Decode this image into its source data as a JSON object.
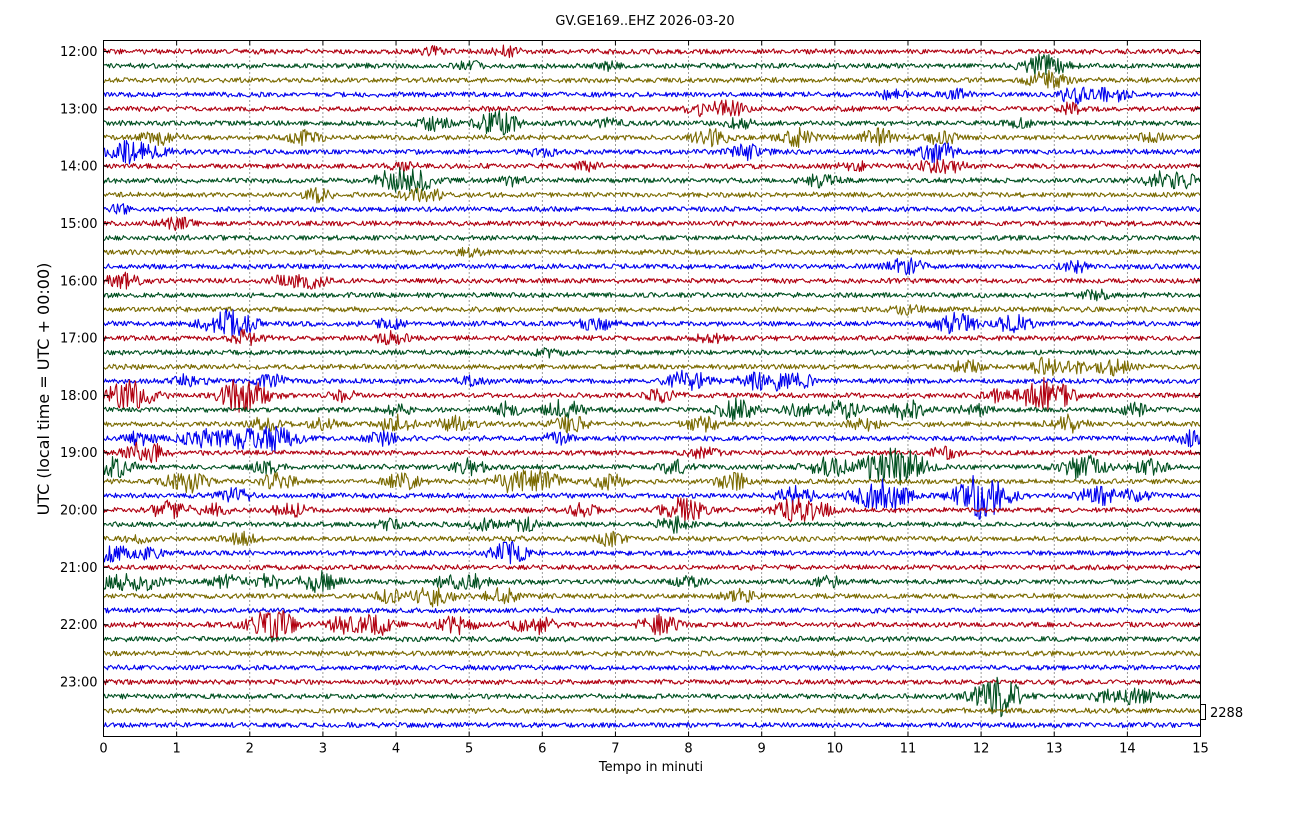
{
  "chart_data": {
    "type": "line",
    "title": "GV.GE169..EHZ 2026-03-20",
    "xlabel": "Tempo in minuti",
    "ylabel": "UTC (local time = UTC + 00:00)",
    "xlim": [
      0,
      15
    ],
    "x_ticks": [
      "0",
      "1",
      "2",
      "3",
      "4",
      "5",
      "6",
      "7",
      "8",
      "9",
      "10",
      "11",
      "12",
      "13",
      "14",
      "15"
    ],
    "y_ticks": [
      "12:00",
      "13:00",
      "14:00",
      "15:00",
      "16:00",
      "17:00",
      "18:00",
      "19:00",
      "20:00",
      "21:00",
      "22:00",
      "23:00"
    ],
    "grid": "vertical dotted at each minute",
    "scale_label": "2288",
    "trace_colors": [
      "#b00010",
      "#005020",
      "#7a6a00",
      "#0000ee"
    ],
    "traces": [
      {
        "start": "12:00",
        "color": "#b00010",
        "events": [
          [
            4.5,
            1.2
          ],
          [
            5.5,
            1.3
          ]
        ]
      },
      {
        "start": "12:15",
        "color": "#005020",
        "events": [
          [
            12.85,
            3.5
          ],
          [
            5.0,
            1.2
          ],
          [
            6.9,
            1.1
          ]
        ]
      },
      {
        "start": "12:30",
        "color": "#7a6a00",
        "events": [
          [
            12.9,
            2.8
          ]
        ]
      },
      {
        "start": "12:45",
        "color": "#0000ee",
        "events": [
          [
            13.3,
            2.5
          ],
          [
            13.8,
            2.0
          ],
          [
            10.8,
            1.3
          ],
          [
            11.7,
            1.3
          ]
        ]
      },
      {
        "start": "13:00",
        "color": "#b00010",
        "events": [
          [
            8.55,
            2.2
          ],
          [
            8.15,
            1.8
          ],
          [
            13.2,
            1.5
          ]
        ]
      },
      {
        "start": "13:15",
        "color": "#005020",
        "events": [
          [
            4.5,
            2.0
          ],
          [
            5.3,
            2.2
          ],
          [
            5.5,
            2.0
          ],
          [
            8.7,
            1.5
          ],
          [
            6.9,
            1.3
          ],
          [
            12.5,
            1.3
          ]
        ]
      },
      {
        "start": "13:30",
        "color": "#7a6a00",
        "events": [
          [
            0.75,
            2.0
          ],
          [
            2.75,
            2.0
          ],
          [
            9.5,
            2.4
          ],
          [
            8.3,
            2.4
          ],
          [
            10.6,
            2.4
          ],
          [
            11.45,
            2.0
          ],
          [
            14.3,
            1.4
          ]
        ]
      },
      {
        "start": "13:45",
        "color": "#0000ee",
        "events": [
          [
            0.35,
            3.0
          ],
          [
            0.75,
            1.6
          ],
          [
            11.4,
            3.0
          ],
          [
            8.8,
            2.0
          ],
          [
            6.0,
            1.3
          ]
        ]
      },
      {
        "start": "14:00",
        "color": "#b00010",
        "events": [
          [
            11.3,
            1.6
          ],
          [
            11.6,
            1.6
          ],
          [
            10.3,
            1.3
          ],
          [
            6.6,
            1.3
          ],
          [
            4.1,
            1.2
          ]
        ]
      },
      {
        "start": "14:15",
        "color": "#005020",
        "events": [
          [
            4.2,
            3.8
          ],
          [
            3.9,
            1.8
          ],
          [
            9.8,
            2.0
          ],
          [
            14.5,
            2.5
          ],
          [
            14.8,
            1.5
          ],
          [
            5.6,
            1.3
          ]
        ]
      },
      {
        "start": "14:30",
        "color": "#7a6a00",
        "events": [
          [
            2.9,
            1.8
          ],
          [
            4.5,
            1.5
          ],
          [
            4.2,
            1.3
          ]
        ]
      },
      {
        "start": "14:45",
        "color": "#0000ee",
        "events": [
          [
            0.25,
            1.3
          ]
        ]
      },
      {
        "start": "15:00",
        "color": "#b00010",
        "events": [
          [
            1.0,
            1.8
          ]
        ]
      },
      {
        "start": "15:15",
        "color": "#005020",
        "events": []
      },
      {
        "start": "15:30",
        "color": "#7a6a00",
        "events": [
          [
            5.0,
            1.3
          ]
        ]
      },
      {
        "start": "15:45",
        "color": "#0000ee",
        "events": [
          [
            10.95,
            2.5
          ],
          [
            13.3,
            1.4
          ]
        ]
      },
      {
        "start": "16:00",
        "color": "#b00010",
        "events": [
          [
            0.25,
            2.2
          ],
          [
            2.5,
            1.5
          ],
          [
            2.85,
            1.8
          ]
        ]
      },
      {
        "start": "16:15",
        "color": "#005020",
        "events": [
          [
            13.6,
            1.6
          ]
        ]
      },
      {
        "start": "16:30",
        "color": "#7a6a00",
        "events": [
          [
            11.0,
            1.3
          ]
        ]
      },
      {
        "start": "16:45",
        "color": "#0000ee",
        "events": [
          [
            1.68,
            3.8
          ],
          [
            6.72,
            2.2
          ],
          [
            11.65,
            3.2
          ],
          [
            12.42,
            2.6
          ],
          [
            3.9,
            1.5
          ],
          [
            1.95,
            1.4
          ]
        ]
      },
      {
        "start": "17:00",
        "color": "#b00010",
        "events": [
          [
            1.95,
            2.0
          ],
          [
            3.95,
            1.8
          ],
          [
            8.3,
            1.4
          ]
        ]
      },
      {
        "start": "17:15",
        "color": "#005020",
        "events": [
          [
            6.1,
            1.3
          ]
        ]
      },
      {
        "start": "17:30",
        "color": "#7a6a00",
        "events": [
          [
            11.8,
            1.8
          ],
          [
            12.9,
            2.5
          ],
          [
            13.8,
            2.2
          ],
          [
            13.3,
            1.6
          ]
        ]
      },
      {
        "start": "17:45",
        "color": "#0000ee",
        "events": [
          [
            8.0,
            3.2
          ],
          [
            8.9,
            2.4
          ],
          [
            9.25,
            2.2
          ],
          [
            1.15,
            1.8
          ],
          [
            2.3,
            1.8
          ],
          [
            5.05,
            1.5
          ],
          [
            9.6,
            1.5
          ]
        ]
      },
      {
        "start": "18:00",
        "color": "#b00010",
        "events": [
          [
            0.35,
            4.2
          ],
          [
            2.0,
            3.8
          ],
          [
            1.75,
            2.4
          ],
          [
            12.9,
            5.0
          ],
          [
            7.6,
            1.8
          ],
          [
            12.2,
            1.6
          ],
          [
            3.3,
            1.5
          ]
        ]
      },
      {
        "start": "18:15",
        "color": "#005020",
        "events": [
          [
            6.3,
            2.8
          ],
          [
            8.65,
            3.0
          ],
          [
            10.1,
            2.5
          ],
          [
            11.0,
            2.8
          ],
          [
            5.5,
            2.0
          ],
          [
            11.9,
            1.8
          ],
          [
            4.0,
            1.6
          ],
          [
            9.5,
            1.6
          ],
          [
            14.1,
            1.7
          ]
        ]
      },
      {
        "start": "18:30",
        "color": "#7a6a00",
        "events": [
          [
            4.0,
            2.5
          ],
          [
            4.8,
            2.2
          ],
          [
            6.4,
            2.4
          ],
          [
            8.2,
            2.0
          ],
          [
            10.4,
            1.8
          ],
          [
            13.2,
            2.4
          ],
          [
            2.2,
            1.8
          ],
          [
            3.0,
            1.5
          ]
        ]
      },
      {
        "start": "18:45",
        "color": "#0000ee",
        "events": [
          [
            0.5,
            2.0
          ],
          [
            1.3,
            2.5
          ],
          [
            1.82,
            3.2
          ],
          [
            2.35,
            3.8
          ],
          [
            14.95,
            2.4
          ],
          [
            3.8,
            1.8
          ],
          [
            6.2,
            1.6
          ]
        ]
      },
      {
        "start": "19:00",
        "color": "#b00010",
        "events": [
          [
            0.5,
            2.0
          ],
          [
            0.65,
            2.0
          ],
          [
            8.2,
            1.6
          ],
          [
            11.5,
            1.5
          ]
        ]
      },
      {
        "start": "19:15",
        "color": "#005020",
        "events": [
          [
            10.65,
            4.2
          ],
          [
            11.0,
            3.8
          ],
          [
            13.4,
            3.5
          ],
          [
            9.9,
            3.0
          ],
          [
            0.15,
            2.8
          ],
          [
            2.2,
            2.0
          ],
          [
            5.0,
            2.2
          ],
          [
            7.8,
            2.0
          ],
          [
            14.3,
            2.2
          ]
        ]
      },
      {
        "start": "19:30",
        "color": "#7a6a00",
        "events": [
          [
            1.15,
            3.2
          ],
          [
            5.6,
            3.0
          ],
          [
            6.0,
            2.8
          ],
          [
            8.6,
            2.5
          ],
          [
            4.1,
            2.4
          ],
          [
            2.4,
            2.2
          ],
          [
            6.9,
            2.0
          ]
        ]
      },
      {
        "start": "19:45",
        "color": "#0000ee",
        "events": [
          [
            10.65,
            5.0
          ],
          [
            11.95,
            4.5
          ],
          [
            12.15,
            3.2
          ],
          [
            13.6,
            2.8
          ],
          [
            9.45,
            2.5
          ],
          [
            1.8,
            2.0
          ],
          [
            14.1,
            1.6
          ]
        ]
      },
      {
        "start": "20:00",
        "color": "#b00010",
        "events": [
          [
            7.95,
            3.5
          ],
          [
            9.45,
            3.2
          ],
          [
            0.9,
            2.4
          ],
          [
            1.5,
            1.8
          ],
          [
            2.55,
            2.0
          ],
          [
            6.55,
            1.8
          ],
          [
            9.8,
            1.5
          ]
        ]
      },
      {
        "start": "20:15",
        "color": "#005020",
        "events": [
          [
            5.75,
            1.8
          ],
          [
            5.2,
            1.6
          ],
          [
            7.8,
            2.2
          ],
          [
            3.9,
            1.4
          ]
        ]
      },
      {
        "start": "20:30",
        "color": "#7a6a00",
        "events": [
          [
            6.9,
            2.2
          ],
          [
            1.9,
            1.6
          ],
          [
            0.5,
            1.4
          ]
        ]
      },
      {
        "start": "20:45",
        "color": "#0000ee",
        "events": [
          [
            0.12,
            2.6
          ],
          [
            5.55,
            3.0
          ],
          [
            0.62,
            1.4
          ]
        ]
      },
      {
        "start": "21:00",
        "color": "#b00010",
        "events": []
      },
      {
        "start": "21:15",
        "color": "#005020",
        "events": [
          [
            0.15,
            2.5
          ],
          [
            0.55,
            2.2
          ],
          [
            1.65,
            2.0
          ],
          [
            2.25,
            2.0
          ],
          [
            2.95,
            2.8
          ],
          [
            5.05,
            2.2
          ],
          [
            4.7,
            1.5
          ],
          [
            8.0,
            1.4
          ],
          [
            9.9,
            1.5
          ]
        ]
      },
      {
        "start": "21:30",
        "color": "#7a6a00",
        "events": [
          [
            4.5,
            3.0
          ],
          [
            5.45,
            2.2
          ],
          [
            8.7,
            1.8
          ],
          [
            3.9,
            1.6
          ]
        ]
      },
      {
        "start": "21:45",
        "color": "#0000ee",
        "events": []
      },
      {
        "start": "22:00",
        "color": "#b00010",
        "events": [
          [
            2.25,
            3.5
          ],
          [
            3.72,
            3.0
          ],
          [
            4.82,
            2.6
          ],
          [
            5.9,
            3.0
          ],
          [
            7.6,
            2.8
          ],
          [
            3.25,
            2.2
          ],
          [
            2.45,
            1.8
          ]
        ]
      },
      {
        "start": "22:15",
        "color": "#005020",
        "events": []
      },
      {
        "start": "22:30",
        "color": "#7a6a00",
        "events": []
      },
      {
        "start": "22:45",
        "color": "#0000ee",
        "events": []
      },
      {
        "start": "23:00",
        "color": "#b00010",
        "events": []
      },
      {
        "start": "23:15",
        "color": "#005020",
        "events": [
          [
            12.15,
            4.2
          ],
          [
            12.35,
            2.4
          ],
          [
            14.15,
            2.4
          ],
          [
            13.7,
            1.4
          ]
        ]
      },
      {
        "start": "23:30",
        "color": "#7a6a00",
        "events": []
      },
      {
        "start": "23:45",
        "color": "#0000ee",
        "events": []
      }
    ]
  }
}
